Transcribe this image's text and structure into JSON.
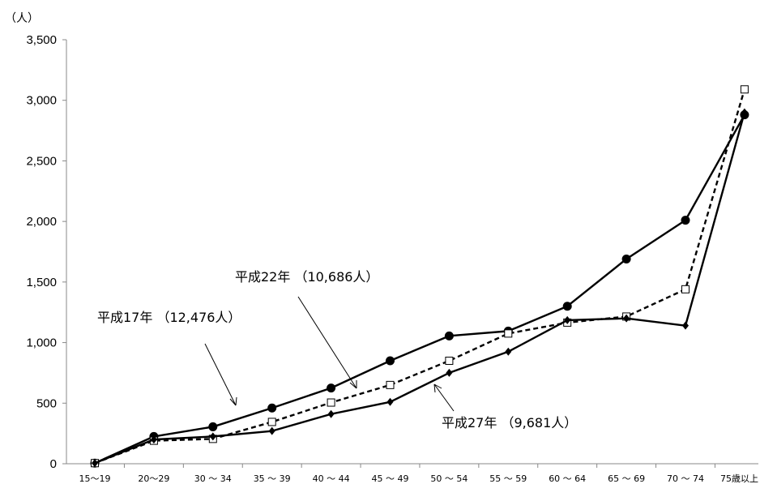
{
  "chart_data": {
    "type": "line",
    "unit_label": "（人）",
    "categories": [
      "15〜19",
      "20〜29",
      "30 〜 34",
      "35 〜 39",
      "40 〜 44",
      "45 〜 49",
      "50 〜 54",
      "55 〜 59",
      "60 〜 64",
      "65 〜 69",
      "70 〜 74",
      "75歳以上"
    ],
    "y_ticks": [
      "0",
      "500",
      "1,000",
      "1,500",
      "2,000",
      "2,500",
      "3,000",
      "3,500"
    ],
    "ylim": [
      0,
      3500
    ],
    "y_tick_values": [
      0,
      500,
      1000,
      1500,
      2000,
      2500,
      3000,
      3500
    ],
    "grid": false,
    "series": [
      {
        "marker": "circle",
        "dash": "solid",
        "values": [
          5,
          225,
          305,
          460,
          625,
          850,
          1055,
          1095,
          1300,
          1690,
          2010,
          2880
        ]
      },
      {
        "marker": "square",
        "dash": "dashed",
        "values": [
          5,
          190,
          205,
          345,
          505,
          650,
          850,
          1075,
          1165,
          1215,
          1440,
          3090
        ]
      },
      {
        "marker": "diamond",
        "dash": "solid",
        "values": [
          5,
          200,
          225,
          270,
          410,
          510,
          750,
          925,
          1185,
          1200,
          1140,
          2900
        ]
      }
    ],
    "annotations": [
      {
        "text": "平成17年 （12,476人）"
      },
      {
        "text": "平成22年 （10,686人）"
      },
      {
        "text": "平成27年 （9,681人）"
      }
    ]
  }
}
